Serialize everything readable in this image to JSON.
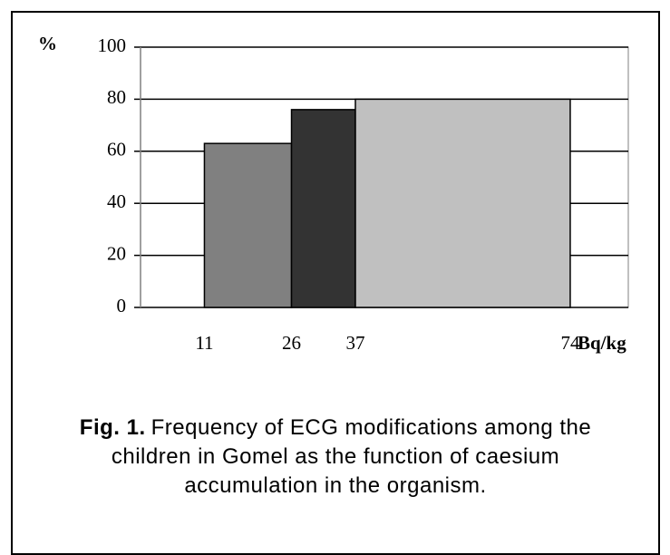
{
  "chart_data": {
    "type": "histogram",
    "y_label": "%",
    "x_label": "Bq/kg",
    "caption_prefix": "Fig. 1.",
    "caption": "Frequency of ECG modifications among the children in Gomel as the function of caesium accumulation in the organism.",
    "bins": [
      11,
      26,
      37,
      74
    ],
    "values": [
      63,
      76,
      80
    ],
    "colors": [
      "#808080",
      "#333333",
      "#c0c0c0"
    ],
    "xlim": [
      0,
      84
    ],
    "ylim": [
      0,
      100
    ],
    "yticks": [
      0,
      20,
      40,
      60,
      80,
      100
    ],
    "grid": true
  }
}
